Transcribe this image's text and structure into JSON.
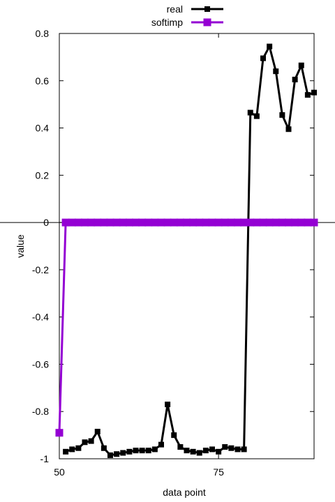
{
  "chart_data": {
    "type": "line",
    "title": "",
    "xlabel": "data point",
    "ylabel": "value",
    "xlim": [
      50,
      90
    ],
    "ylim": [
      -1,
      0.8
    ],
    "x_ticks": [
      50,
      75
    ],
    "y_ticks": [
      0.8,
      0.6,
      0.4,
      0.2,
      0,
      -0.2,
      -0.4,
      -0.6,
      -0.8,
      -1
    ],
    "y_tick_labels": [
      "0.8",
      "0.6",
      "0.4",
      "0.2",
      "0",
      "-0.2",
      "-0.4",
      "-0.6",
      "-0.8",
      "-1"
    ],
    "zero_axis": true,
    "grid": false,
    "legend_position": "top-center",
    "series": [
      {
        "name": "real",
        "color": "#000000",
        "marker": "square",
        "x": [
          51,
          52,
          53,
          54,
          55,
          56,
          57,
          58,
          59,
          60,
          61,
          62,
          63,
          64,
          65,
          66,
          67,
          68,
          69,
          70,
          71,
          72,
          73,
          74,
          75,
          76,
          77,
          78,
          79,
          80,
          81,
          82,
          83,
          84,
          85,
          86,
          87,
          88,
          89,
          90
        ],
        "y": [
          -0.97,
          -0.96,
          -0.955,
          -0.93,
          -0.925,
          -0.885,
          -0.955,
          -0.985,
          -0.98,
          -0.975,
          -0.97,
          -0.965,
          -0.965,
          -0.965,
          -0.96,
          -0.94,
          -0.77,
          -0.9,
          -0.95,
          -0.965,
          -0.97,
          -0.975,
          -0.965,
          -0.96,
          -0.97,
          -0.95,
          -0.955,
          -0.96,
          -0.96,
          0.465,
          0.45,
          0.695,
          0.745,
          0.64,
          0.455,
          0.395,
          0.605,
          0.665,
          0.54,
          0.55
        ]
      },
      {
        "name": "softimp",
        "color": "#9400d3",
        "marker": "square",
        "x": [
          50,
          51,
          52,
          53,
          54,
          55,
          56,
          57,
          58,
          59,
          60,
          61,
          62,
          63,
          64,
          65,
          66,
          67,
          68,
          69,
          70,
          71,
          72,
          73,
          74,
          75,
          76,
          77,
          78,
          79,
          80,
          81,
          82,
          83,
          84,
          85,
          86,
          87,
          88,
          89,
          90
        ],
        "y": [
          -0.89,
          0,
          0,
          0,
          0,
          0,
          0,
          0,
          0,
          0,
          0,
          0,
          0,
          0,
          0,
          0,
          0,
          0,
          0,
          0,
          0,
          0,
          0,
          0,
          0,
          0,
          0,
          0,
          0,
          0,
          0,
          0,
          0,
          0,
          0,
          0,
          0,
          0,
          0,
          0,
          0
        ]
      }
    ]
  }
}
